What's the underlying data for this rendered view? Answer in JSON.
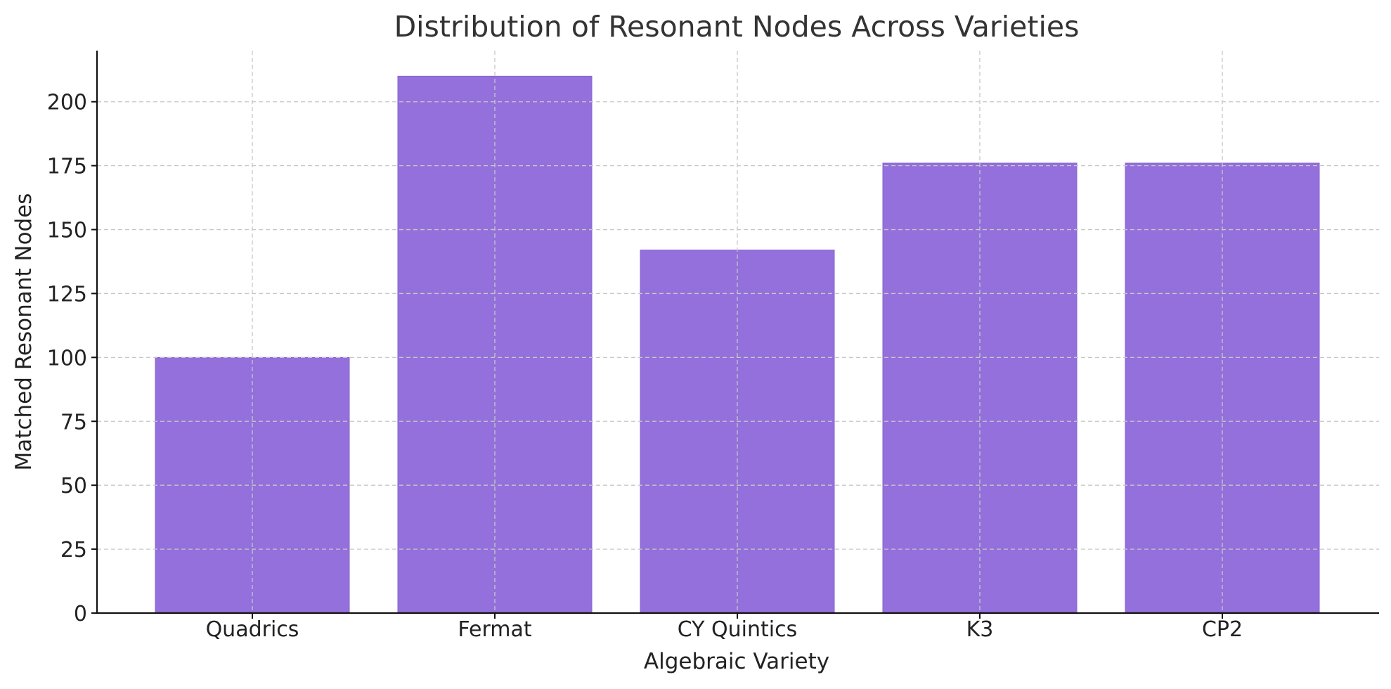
{
  "chart_data": {
    "type": "bar",
    "title": "Distribution of Resonant Nodes Across Varieties",
    "xlabel": "Algebraic Variety",
    "ylabel": "Matched Resonant Nodes",
    "categories": [
      "Quadrics",
      "Fermat",
      "CY Quintics",
      "K3",
      "CP2"
    ],
    "values": [
      100,
      210,
      142,
      176,
      176
    ],
    "ylim": [
      0,
      220
    ],
    "yticks": [
      0,
      25,
      50,
      75,
      100,
      125,
      150,
      175,
      200
    ],
    "grid": true,
    "bar_color": "#9370DB"
  }
}
